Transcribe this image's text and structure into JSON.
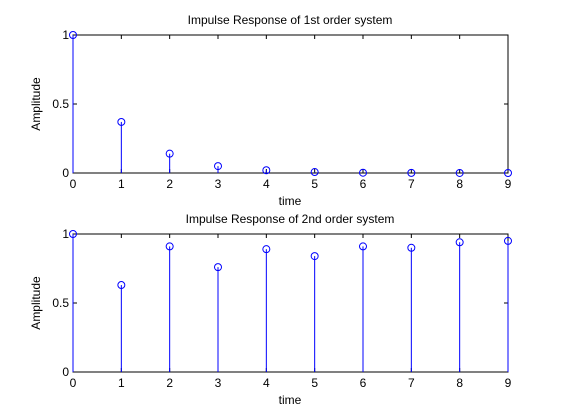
{
  "chart_data": [
    {
      "type": "stem",
      "title": "Impulse Response of 1st order system",
      "xlabel": "time",
      "ylabel": "Amplitude",
      "xlim": [
        0,
        9
      ],
      "ylim": [
        0,
        1
      ],
      "xticks": [
        "0",
        "1",
        "2",
        "3",
        "4",
        "5",
        "6",
        "7",
        "8",
        "9"
      ],
      "yticks": [
        "0",
        "0.5",
        "1"
      ],
      "grid": false,
      "series": [
        {
          "x": [
            0,
            1,
            2,
            3,
            4,
            5,
            6,
            7,
            8,
            9
          ],
          "values": [
            1,
            0.37,
            0.14,
            0.05,
            0.02,
            0.007,
            0.002,
            0.001,
            0.0003,
            0.0001
          ]
        }
      ]
    },
    {
      "type": "stem",
      "title": "Impulse Response of 2nd order system",
      "xlabel": "time",
      "ylabel": "Amplitude",
      "xlim": [
        0,
        9
      ],
      "ylim": [
        0,
        1
      ],
      "xticks": [
        "0",
        "1",
        "2",
        "3",
        "4",
        "5",
        "6",
        "7",
        "8",
        "9"
      ],
      "yticks": [
        "0",
        "0.5",
        "1"
      ],
      "grid": false,
      "series": [
        {
          "x": [
            0,
            1,
            2,
            3,
            4,
            5,
            6,
            7,
            8,
            9
          ],
          "values": [
            1,
            0.63,
            0.91,
            0.76,
            0.89,
            0.84,
            0.91,
            0.9,
            0.94,
            0.95
          ]
        }
      ]
    }
  ],
  "colors": {
    "stem": "#0000ff",
    "axes": "#000000",
    "background": "#ffffff"
  }
}
